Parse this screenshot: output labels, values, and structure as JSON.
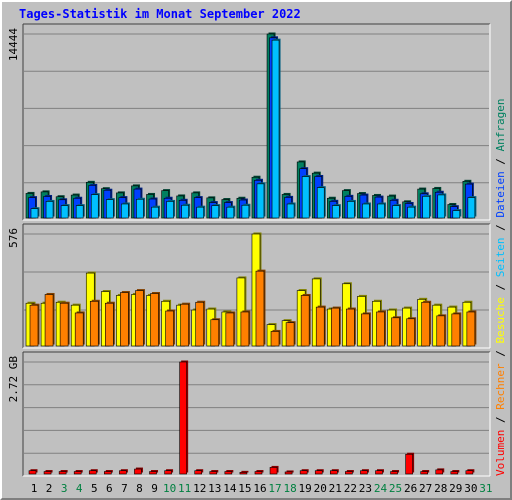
{
  "title": "Tages-Statistik im Monat September 2022",
  "colors": {
    "background": "#c0c0c0",
    "title": "#0000ff",
    "anfragen": "#008060",
    "dateien": "#0040ff",
    "seiten": "#00c0ff",
    "besuche": "#ffff00",
    "rechner": "#ff8000",
    "volumen": "#ff0000",
    "weekend_day_label": "#008040"
  },
  "side_legend": {
    "top_panel": [
      {
        "label": "Anfragen",
        "color": "#008060"
      },
      {
        "label": "Dateien",
        "color": "#0040ff"
      },
      {
        "label": "Seiten",
        "color": "#00c0ff"
      },
      {
        "label": "Besuche",
        "color": "#ffff00"
      },
      {
        "label": "Rechner",
        "color": "#ff8000"
      },
      {
        "label": "Volumen",
        "color": "#ff0000"
      }
    ],
    "separator": "/"
  },
  "chart_data": [
    {
      "type": "bar",
      "panel": "hits",
      "y_tick_label": "14444",
      "ylim": [
        0,
        14444
      ],
      "categories": [
        "1",
        "2",
        "3",
        "4",
        "5",
        "6",
        "7",
        "8",
        "9",
        "10",
        "11",
        "12",
        "13",
        "14",
        "15",
        "16",
        "17",
        "18",
        "19",
        "20",
        "21",
        "22",
        "23",
        "24",
        "25",
        "26",
        "27",
        "28",
        "29",
        "30"
      ],
      "series": [
        {
          "name": "Anfragen",
          "color": "#008060",
          "values": [
            1930,
            2050,
            1670,
            1800,
            2800,
            2300,
            1970,
            2520,
            1850,
            2150,
            1730,
            1970,
            1580,
            1450,
            1550,
            3200,
            14444,
            1850,
            4400,
            3520,
            1550,
            2150,
            1920,
            1770,
            1720,
            1270,
            2270,
            2320,
            1060,
            2880
          ]
        },
        {
          "name": "Dateien",
          "color": "#0040ff",
          "values": [
            1600,
            1690,
            1430,
            1550,
            2560,
            2180,
            1600,
            2270,
            1490,
            1550,
            1390,
            1600,
            1210,
            1210,
            1410,
            2960,
            14144,
            1620,
            3870,
            3260,
            1310,
            1700,
            1800,
            1640,
            1390,
            1140,
            1900,
            2020,
            890,
            2660
          ]
        },
        {
          "name": "Seiten",
          "color": "#00c0ff",
          "values": [
            730,
            1300,
            970,
            970,
            1830,
            1440,
            1100,
            1470,
            850,
            1300,
            1000,
            850,
            970,
            850,
            1000,
            2680,
            13960,
            1100,
            3250,
            2380,
            970,
            1300,
            1100,
            1100,
            970,
            850,
            1700,
            1810,
            580,
            1600
          ]
        }
      ]
    },
    {
      "type": "bar",
      "panel": "visits",
      "y_tick_label": "576",
      "ylim": [
        0,
        576
      ],
      "categories": [
        "1",
        "2",
        "3",
        "4",
        "5",
        "6",
        "7",
        "8",
        "9",
        "10",
        "11",
        "12",
        "13",
        "14",
        "15",
        "16",
        "17",
        "18",
        "19",
        "20",
        "21",
        "22",
        "23",
        "24",
        "25",
        "26",
        "27",
        "28",
        "29",
        "30"
      ],
      "series": [
        {
          "name": "Besuche",
          "color": "#ffff00",
          "values": [
            220,
            220,
            225,
            210,
            375,
            280,
            260,
            265,
            260,
            230,
            210,
            185,
            190,
            175,
            350,
            576,
            110,
            130,
            285,
            345,
            190,
            320,
            255,
            230,
            185,
            195,
            240,
            210,
            200,
            225
          ]
        },
        {
          "name": "Rechner",
          "color": "#ff8000",
          "values": [
            210,
            265,
            220,
            170,
            230,
            220,
            275,
            285,
            270,
            180,
            215,
            225,
            135,
            170,
            175,
            385,
            75,
            120,
            260,
            200,
            195,
            190,
            165,
            175,
            145,
            140,
            225,
            155,
            165,
            175
          ]
        }
      ]
    },
    {
      "type": "bar",
      "panel": "volume",
      "y_tick_label": "2.72 GB",
      "ylim": [
        0,
        2.72
      ],
      "categories": [
        "1",
        "2",
        "3",
        "4",
        "5",
        "6",
        "7",
        "8",
        "9",
        "10",
        "11",
        "12",
        "13",
        "14",
        "15",
        "16",
        "17",
        "18",
        "19",
        "20",
        "21",
        "22",
        "23",
        "24",
        "25",
        "26",
        "27",
        "28",
        "29",
        "30"
      ],
      "series": [
        {
          "name": "Volumen",
          "color": "#ff0000",
          "values": [
            0.08,
            0.06,
            0.06,
            0.06,
            0.08,
            0.06,
            0.08,
            0.12,
            0.06,
            0.08,
            2.72,
            0.08,
            0.06,
            0.06,
            0.04,
            0.06,
            0.16,
            0.05,
            0.08,
            0.08,
            0.08,
            0.06,
            0.08,
            0.08,
            0.06,
            0.48,
            0.06,
            0.1,
            0.06,
            0.08
          ]
        }
      ]
    }
  ],
  "x_axis": {
    "day_labels": [
      "1",
      "2",
      "3",
      "4",
      "5",
      "6",
      "7",
      "8",
      "9",
      "10",
      "11",
      "12",
      "13",
      "14",
      "15",
      "16",
      "17",
      "18",
      "19",
      "20",
      "21",
      "22",
      "23",
      "24",
      "25",
      "26",
      "27",
      "28",
      "29",
      "30",
      "31"
    ],
    "weekend_days": [
      3,
      4,
      10,
      11,
      17,
      18,
      24,
      25,
      31
    ]
  }
}
